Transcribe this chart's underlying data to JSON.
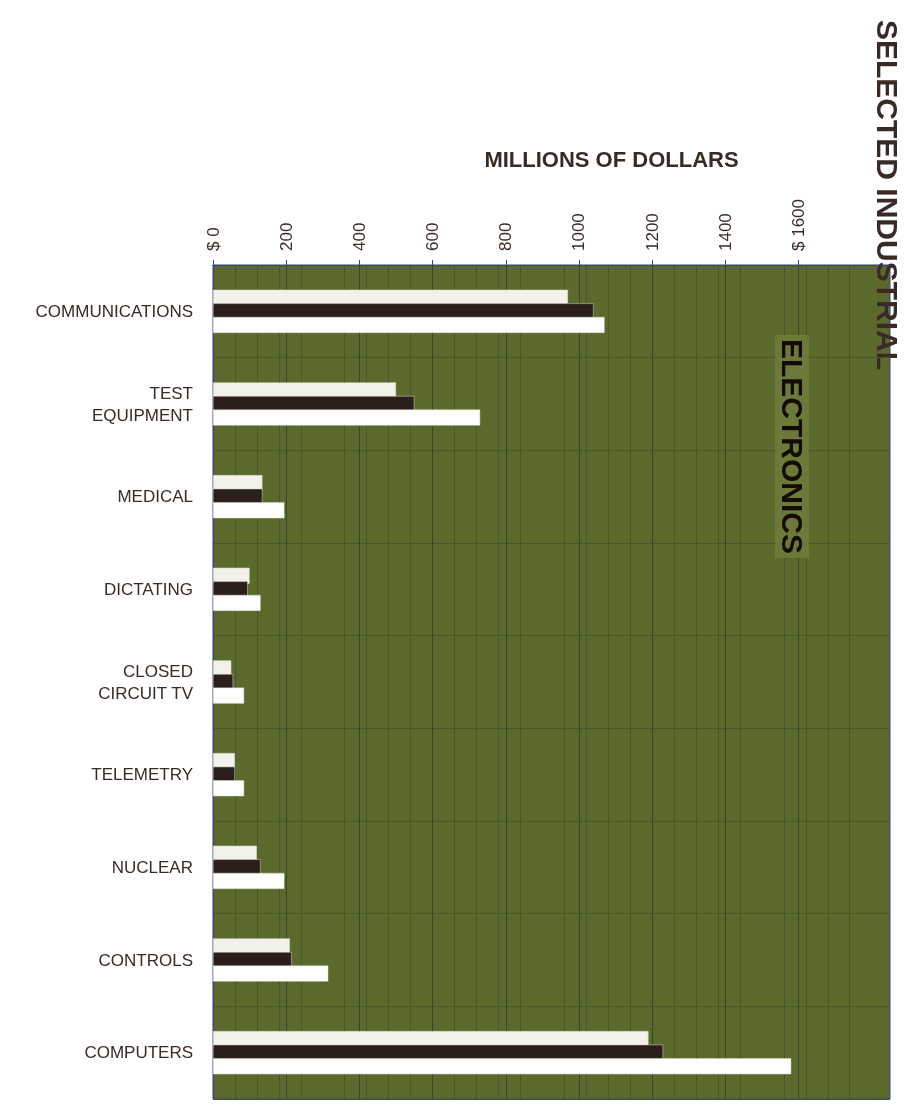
{
  "chart_data": {
    "type": "bar",
    "orientation": "horizontal",
    "title": "SELECTED INDUSTRIAL",
    "subtitle": "ELECTRONICS",
    "xlabel": "MILLIONS OF DOLLARS",
    "categories": [
      "COMMUNICATIONS",
      "TEST\nEQUIPMENT",
      "MEDICAL",
      "DICTATING",
      "CLOSED\nCIRCUIT TV",
      "TELEMETRY",
      "NUCLEAR",
      "CONTROLS",
      "COMPUTERS"
    ],
    "series": [
      {
        "color": "#f2f2ea",
        "values": [
          970,
          500,
          135,
          100,
          50,
          60,
          120,
          210,
          1190
        ]
      },
      {
        "color": "#2b1f1b",
        "values": [
          1040,
          550,
          135,
          95,
          55,
          60,
          130,
          215,
          1230
        ]
      },
      {
        "color": "#ffffff",
        "values": [
          1070,
          730,
          195,
          130,
          85,
          85,
          195,
          315,
          1580
        ]
      }
    ],
    "xlim": [
      0,
      1850
    ],
    "xticks": [
      {
        "value": 0,
        "label": "$ 0"
      },
      200,
      400,
      600,
      800,
      1000,
      1200,
      1400,
      {
        "value": 1600,
        "label": "$ 1600"
      }
    ],
    "grid": true
  }
}
